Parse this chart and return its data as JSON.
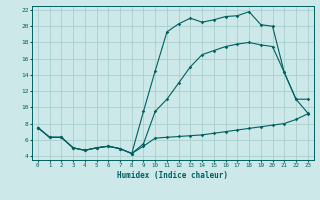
{
  "title": "",
  "xlabel": "Humidex (Indice chaleur)",
  "ylabel": "",
  "bg_color": "#cce8e8",
  "grid_color": "#aad0d0",
  "line_color": "#006060",
  "xlim": [
    -0.5,
    23.5
  ],
  "ylim": [
    3.5,
    22.5
  ],
  "yticks": [
    4,
    6,
    8,
    10,
    12,
    14,
    16,
    18,
    20,
    22
  ],
  "xticks": [
    0,
    1,
    2,
    3,
    4,
    5,
    6,
    7,
    8,
    9,
    10,
    11,
    12,
    13,
    14,
    15,
    16,
    17,
    18,
    19,
    20,
    21,
    22,
    23
  ],
  "series": {
    "min": {
      "x": [
        0,
        1,
        2,
        3,
        4,
        5,
        6,
        7,
        8,
        9,
        10,
        11,
        12,
        13,
        14,
        15,
        16,
        17,
        18,
        19,
        20,
        21,
        22,
        23
      ],
      "y": [
        7.5,
        6.3,
        6.3,
        5.0,
        4.7,
        5.0,
        5.2,
        4.9,
        4.3,
        5.2,
        6.2,
        6.3,
        6.4,
        6.5,
        6.6,
        6.8,
        7.0,
        7.2,
        7.4,
        7.6,
        7.8,
        8.0,
        8.5,
        9.2
      ]
    },
    "max": {
      "x": [
        0,
        1,
        2,
        3,
        4,
        5,
        6,
        7,
        8,
        9,
        10,
        11,
        12,
        13,
        14,
        15,
        16,
        17,
        18,
        19,
        20,
        21,
        22,
        23
      ],
      "y": [
        7.5,
        6.3,
        6.3,
        5.0,
        4.7,
        5.0,
        5.2,
        4.9,
        4.3,
        9.5,
        14.5,
        19.3,
        20.3,
        21.0,
        20.5,
        20.8,
        21.2,
        21.3,
        21.8,
        20.2,
        20.0,
        14.3,
        11.0,
        11.0
      ]
    },
    "mean": {
      "x": [
        0,
        1,
        2,
        3,
        4,
        5,
        6,
        7,
        8,
        9,
        10,
        11,
        12,
        13,
        14,
        15,
        16,
        17,
        18,
        19,
        20,
        21,
        22,
        23
      ],
      "y": [
        7.5,
        6.3,
        6.3,
        5.0,
        4.7,
        5.0,
        5.2,
        4.9,
        4.3,
        5.5,
        9.5,
        11.0,
        13.0,
        15.0,
        16.5,
        17.0,
        17.5,
        17.8,
        18.0,
        17.7,
        17.5,
        14.3,
        11.0,
        9.3
      ]
    }
  }
}
